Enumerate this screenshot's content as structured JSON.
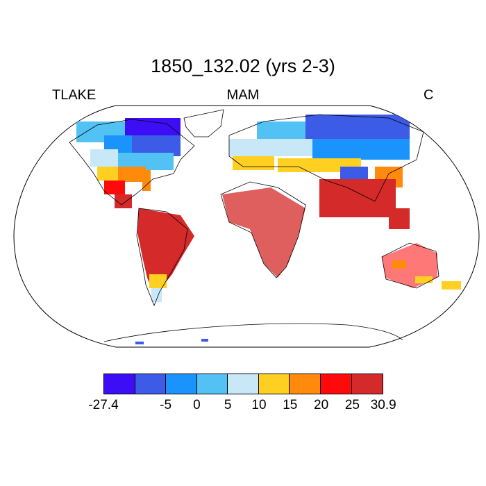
{
  "title": "1850_132.02 (yrs 2-3)",
  "variable": "TLAKE",
  "season": "MAM",
  "units": "C",
  "colorbar": {
    "colors": [
      "#3d0ef5",
      "#3c5be6",
      "#1a93fc",
      "#52c2f5",
      "#c8e8f8",
      "#ffd022",
      "#ff8a0c",
      "#ff0a0a",
      "#d42a2a"
    ],
    "labels": [
      "-27.4",
      "",
      "-5",
      "0",
      "5",
      "10",
      "15",
      "20",
      "25",
      "30.9"
    ]
  }
}
